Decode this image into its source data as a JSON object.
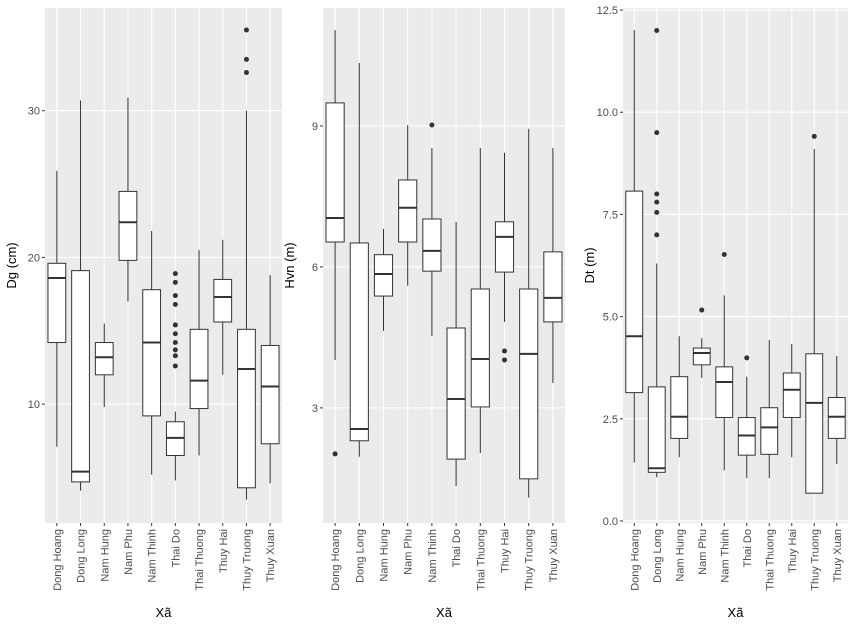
{
  "chart_data": [
    {
      "type": "box",
      "y_label": "Dg (cm)",
      "x_label": "Xã",
      "categories": [
        "Dong Hoang",
        "Dong Long",
        "Nam Hung",
        "Nam Phu",
        "Nam Thinh",
        "Thai Do",
        "Thai Thuong",
        "Thuy Hai",
        "Thuy Truong",
        "Thuy Xuan"
      ],
      "ylim": [
        1.9,
        37.0
      ],
      "yticks": [
        10,
        20,
        30
      ],
      "grid": true,
      "color": "#ffffff",
      "boxes": [
        {
          "min": 7.1,
          "q1": 14.2,
          "median": 18.6,
          "q3": 19.6,
          "max": 25.9,
          "outliers": []
        },
        {
          "min": 4.1,
          "q1": 4.7,
          "median": 5.4,
          "q3": 19.1,
          "max": 30.7,
          "outliers": []
        },
        {
          "min": 9.8,
          "q1": 12.0,
          "median": 13.2,
          "q3": 14.2,
          "max": 15.5,
          "outliers": []
        },
        {
          "min": 17.0,
          "q1": 19.8,
          "median": 22.4,
          "q3": 24.5,
          "max": 30.9,
          "outliers": []
        },
        {
          "min": 5.2,
          "q1": 9.2,
          "median": 14.2,
          "q3": 17.8,
          "max": 21.8,
          "outliers": []
        },
        {
          "min": 4.8,
          "q1": 6.5,
          "median": 7.7,
          "q3": 8.8,
          "max": 9.5,
          "outliers": [
            18.9,
            18.3,
            17.4,
            16.8,
            15.4,
            14.8,
            14.2,
            13.7,
            13.3,
            12.6
          ]
        },
        {
          "min": 6.5,
          "q1": 9.7,
          "median": 11.6,
          "q3": 15.1,
          "max": 20.5,
          "outliers": []
        },
        {
          "min": 12.0,
          "q1": 15.6,
          "median": 17.3,
          "q3": 18.5,
          "max": 21.2,
          "outliers": []
        },
        {
          "min": 3.5,
          "q1": 4.3,
          "median": 12.4,
          "q3": 15.1,
          "max": 30.0,
          "outliers": [
            35.5,
            33.5,
            32.6
          ]
        },
        {
          "min": 4.6,
          "q1": 7.3,
          "median": 11.2,
          "q3": 14.0,
          "max": 18.8,
          "outliers": []
        }
      ]
    },
    {
      "type": "box",
      "y_label": "Hvn (m)",
      "x_label": "Xã",
      "categories": [
        "Dong Hoang",
        "Dong Long",
        "Nam Hung",
        "Nam Phu",
        "Nam Thinh",
        "Thai Do",
        "Thai Thuong",
        "Thuy Hai",
        "Thuy Truong",
        "Thuy Xuan"
      ],
      "ylim": [
        0.55,
        11.51
      ],
      "yticks": [
        3,
        6,
        9
      ],
      "grid": true,
      "color": "#ffffff",
      "boxes": [
        {
          "min": 4.02,
          "q1": 6.53,
          "median": 7.04,
          "q3": 9.49,
          "max": 11.04,
          "outliers": [
            2.02
          ]
        },
        {
          "min": 1.96,
          "q1": 2.3,
          "median": 2.55,
          "q3": 6.51,
          "max": 10.34,
          "outliers": []
        },
        {
          "min": 4.64,
          "q1": 5.38,
          "median": 5.85,
          "q3": 6.26,
          "max": 6.81,
          "outliers": []
        },
        {
          "min": 5.6,
          "q1": 6.53,
          "median": 7.26,
          "q3": 7.85,
          "max": 9.02,
          "outliers": []
        },
        {
          "min": 4.53,
          "q1": 5.91,
          "median": 6.34,
          "q3": 7.02,
          "max": 8.53,
          "outliers": [
            9.02
          ]
        },
        {
          "min": 1.34,
          "q1": 1.91,
          "median": 3.19,
          "q3": 4.7,
          "max": 6.96,
          "outliers": []
        },
        {
          "min": 2.04,
          "q1": 3.02,
          "median": 4.04,
          "q3": 5.53,
          "max": 8.53,
          "outliers": []
        },
        {
          "min": 4.83,
          "q1": 5.89,
          "median": 6.64,
          "q3": 6.96,
          "max": 8.43,
          "outliers": [
            4.21,
            4.02
          ]
        },
        {
          "min": 1.09,
          "q1": 1.49,
          "median": 4.15,
          "q3": 5.53,
          "max": 8.94,
          "outliers": []
        },
        {
          "min": 3.53,
          "q1": 4.83,
          "median": 5.34,
          "q3": 6.32,
          "max": 8.53,
          "outliers": []
        }
      ]
    },
    {
      "type": "box",
      "y_label": "Dt (m)",
      "x_label": "Xã",
      "categories": [
        "Dong Hoang",
        "Dong Long",
        "Nam Hung",
        "Nam Phu",
        "Nam Thinh",
        "Thai Do",
        "Thai Thuong",
        "Thuy Hai",
        "Thuy Truong",
        "Thuy Xuan"
      ],
      "ylim": [
        -0.05,
        12.55
      ],
      "yticks": [
        {
          "value": 0,
          "label": "0.0"
        },
        2.5,
        {
          "value": 5,
          "label": "5.0"
        },
        7.5,
        {
          "value": 10,
          "label": "10.0"
        },
        12.5
      ],
      "grid": true,
      "color": "#ffffff",
      "boxes": [
        {
          "min": 1.43,
          "q1": 3.14,
          "median": 4.52,
          "q3": 8.07,
          "max": 12.01,
          "outliers": []
        },
        {
          "min": 1.07,
          "q1": 1.19,
          "median": 1.29,
          "q3": 3.28,
          "max": 6.3,
          "outliers": [
            12.0,
            9.5,
            8.0,
            7.8,
            7.55,
            7.0
          ]
        },
        {
          "min": 1.56,
          "q1": 2.02,
          "median": 2.55,
          "q3": 3.53,
          "max": 4.52,
          "outliers": []
        },
        {
          "min": 3.5,
          "q1": 3.82,
          "median": 4.11,
          "q3": 4.23,
          "max": 4.47,
          "outliers": [
            5.16
          ]
        },
        {
          "min": 1.24,
          "q1": 2.53,
          "median": 3.4,
          "q3": 3.77,
          "max": 5.52,
          "outliers": [
            6.52
          ]
        },
        {
          "min": 1.05,
          "q1": 1.61,
          "median": 2.09,
          "q3": 2.53,
          "max": 3.53,
          "outliers": [
            3.99
          ]
        },
        {
          "min": 1.05,
          "q1": 1.63,
          "median": 2.29,
          "q3": 2.77,
          "max": 4.43,
          "outliers": []
        },
        {
          "min": 1.56,
          "q1": 2.53,
          "median": 3.21,
          "q3": 3.62,
          "max": 4.33,
          "outliers": []
        },
        {
          "min": 0.68,
          "q1": 0.68,
          "median": 2.89,
          "q3": 4.09,
          "max": 9.1,
          "outliers": [
            9.41
          ]
        },
        {
          "min": 1.39,
          "q1": 2.02,
          "median": 2.55,
          "q3": 3.02,
          "max": 4.04,
          "outliers": []
        }
      ]
    }
  ]
}
